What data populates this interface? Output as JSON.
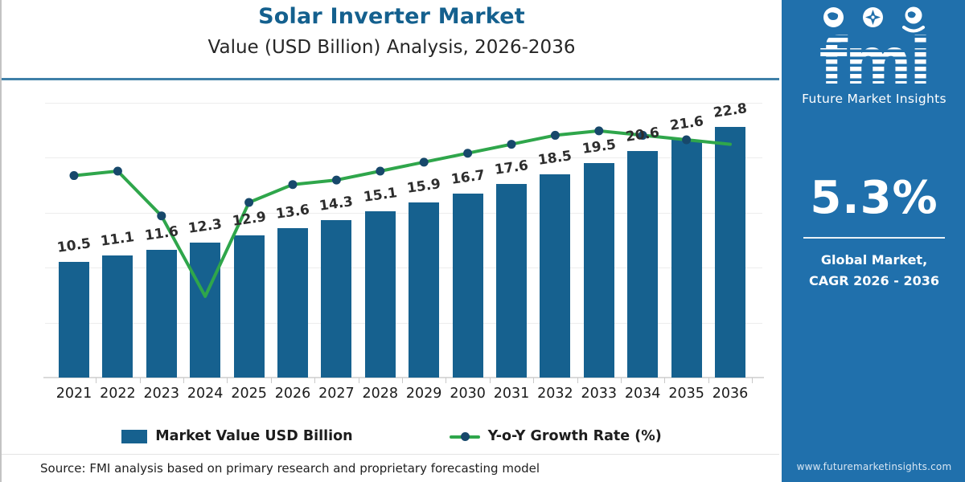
{
  "header": {
    "title": "Solar Inverter Market",
    "subtitle": "Value (USD Billion) Analysis, 2026-2036",
    "accent_color": "#14608E"
  },
  "chart_data": {
    "type": "bar",
    "combo": "bar+line",
    "categories": [
      "2021",
      "2022",
      "2023",
      "2024",
      "2025",
      "2026",
      "2027",
      "2028",
      "2029",
      "2030",
      "2031",
      "2032",
      "2033",
      "2034",
      "2035",
      "2036"
    ],
    "series": [
      {
        "name": "Market Value USD Billion",
        "type": "bar",
        "color": "#16618F",
        "values": [
          10.5,
          11.1,
          11.6,
          12.3,
          12.9,
          13.6,
          14.3,
          15.1,
          15.9,
          16.7,
          17.6,
          18.5,
          19.5,
          20.6,
          21.6,
          22.8
        ]
      },
      {
        "name": "Y-o-Y Growth Rate (%)",
        "type": "line",
        "color": "#2FA64B",
        "marker_color": "#17486B",
        "values_estimated": [
          5.2,
          5.3,
          4.3,
          2.5,
          4.6,
          5.0,
          5.1,
          5.3,
          5.5,
          5.7,
          5.9,
          6.1,
          6.2,
          6.1,
          6.0,
          5.9
        ],
        "marker_skip_indices": [
          3,
          15
        ],
        "note": "growth line is unlabeled in the figure; values estimated from plotted positions"
      }
    ],
    "title": "Solar Inverter Market Value (USD Billion) Analysis, 2026-2036",
    "xlabel": "",
    "ylabel": "",
    "ylim": [
      0,
      25
    ],
    "grid": "horizontal-light",
    "legend_position": "bottom",
    "bar_value_labels": true
  },
  "legend": {
    "items": [
      {
        "label": "Market Value USD Billion",
        "swatch": "bar"
      },
      {
        "label": "Y-o-Y Growth Rate (%)",
        "swatch": "line-marker"
      }
    ]
  },
  "footer": {
    "source_text": "Source: FMI analysis based on primary research and proprietary forecasting model"
  },
  "side_panel": {
    "bg_color": "#2070AC",
    "logo": {
      "brand": "fmi",
      "tagline": "Future Market Insights",
      "icons": [
        "globe-map-icon",
        "globe-compass-icon",
        "globe-person-icon"
      ]
    },
    "stat_value": "5.3%",
    "stat_caption_line1": "Global Market,",
    "stat_caption_line2": "CAGR 2026 - 2036",
    "website": "www.futuremarketinsights.com"
  }
}
